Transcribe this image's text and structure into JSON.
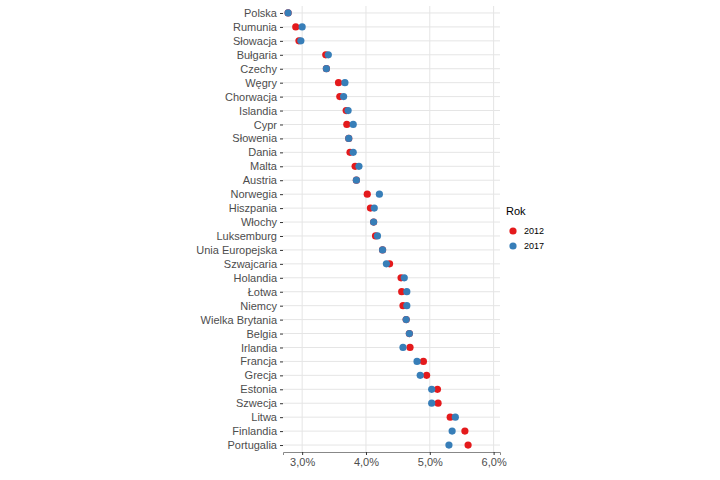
{
  "chart_data": {
    "type": "scatter",
    "legend_title": "Rok",
    "legend": "right",
    "grid": true,
    "marker": "circle",
    "categories": [
      "Polska",
      "Rumunia",
      "Słowacja",
      "Bułgaria",
      "Czechy",
      "Węgry",
      "Chorwacja",
      "Islandia",
      "Cypr",
      "Słowenia",
      "Dania",
      "Malta",
      "Austria",
      "Norwegia",
      "Hiszpania",
      "Włochy",
      "Luksemburg",
      "Unia Europejska",
      "Szwajcaria",
      "Holandia",
      "Łotwa",
      "Niemcy",
      "Wielka Brytania",
      "Belgia",
      "Irlandia",
      "Francja",
      "Grecja",
      "Estonia",
      "Szwecja",
      "Litwa",
      "Finlandia",
      "Portugalia"
    ],
    "series": [
      {
        "name": "2012",
        "color": "#e41a1c",
        "values": [
          2.78,
          2.9,
          2.95,
          3.37,
          3.38,
          3.57,
          3.59,
          3.69,
          3.7,
          3.73,
          3.75,
          3.83,
          3.85,
          4.02,
          4.07,
          4.12,
          4.15,
          4.26,
          4.37,
          4.55,
          4.56,
          4.58,
          4.63,
          4.68,
          4.69,
          4.9,
          4.95,
          5.12,
          5.13,
          5.32,
          5.55,
          5.6
        ]
      },
      {
        "name": "2017",
        "color": "#377eb8",
        "values": [
          2.78,
          3.0,
          2.98,
          3.41,
          3.38,
          3.67,
          3.65,
          3.72,
          3.8,
          3.73,
          3.8,
          3.89,
          3.85,
          4.21,
          4.13,
          4.12,
          4.18,
          4.26,
          4.32,
          4.6,
          4.64,
          4.64,
          4.63,
          4.68,
          4.58,
          4.8,
          4.85,
          5.03,
          5.03,
          5.4,
          5.35,
          5.3
        ]
      }
    ],
    "xlim": [
      2.7,
      6.1
    ],
    "xticks": [
      {
        "value": 3,
        "label": "3,0%"
      },
      {
        "value": 4,
        "label": "4,0%"
      },
      {
        "value": 5,
        "label": "5,0%"
      },
      {
        "value": 6,
        "label": "6,0%"
      }
    ]
  }
}
